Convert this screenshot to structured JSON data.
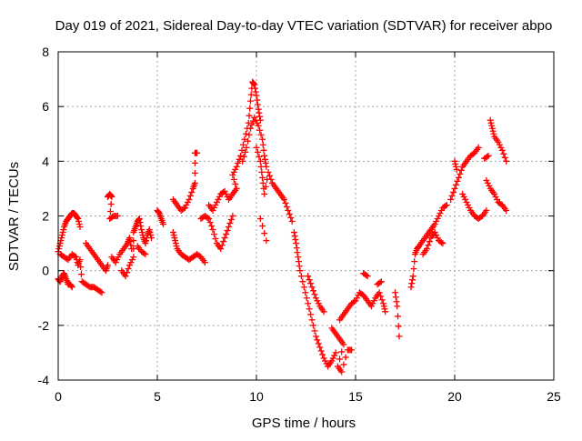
{
  "chart_data": {
    "type": "scatter",
    "title": "Day 019 of 2021, Sidereal Day-to-day VTEC variation (SDTVAR) for receiver abpo",
    "xlabel": "GPS time / hours",
    "ylabel": "SDTVAR / TECUs",
    "xlim": [
      0,
      25
    ],
    "ylim": [
      -4,
      8
    ],
    "xticks": [
      0,
      5,
      10,
      15,
      20,
      25
    ],
    "yticks": [
      -4,
      -2,
      0,
      2,
      4,
      6,
      8
    ],
    "grid": true,
    "marker": "+",
    "series_color": "#ff0000",
    "series": [
      {
        "name": "SDTVAR",
        "points": [
          [
            0.0,
            -0.3
          ],
          [
            0.1,
            -0.4
          ],
          [
            0.2,
            -0.2
          ],
          [
            0.3,
            -0.1
          ],
          [
            0.4,
            -0.3
          ],
          [
            0.5,
            -0.5
          ],
          [
            0.6,
            -0.5
          ],
          [
            0.7,
            -0.6
          ],
          [
            0.0,
            0.7
          ],
          [
            0.1,
            1.0
          ],
          [
            0.2,
            1.3
          ],
          [
            0.3,
            1.6
          ],
          [
            0.4,
            1.8
          ],
          [
            0.5,
            1.9
          ],
          [
            0.6,
            2.0
          ],
          [
            0.7,
            2.1
          ],
          [
            0.8,
            2.1
          ],
          [
            0.9,
            2.0
          ],
          [
            1.0,
            1.9
          ],
          [
            1.1,
            1.6
          ],
          [
            0.1,
            0.6
          ],
          [
            0.3,
            0.5
          ],
          [
            0.5,
            0.4
          ],
          [
            0.7,
            0.6
          ],
          [
            0.9,
            0.5
          ],
          [
            1.0,
            0.2
          ],
          [
            1.1,
            0.4
          ],
          [
            1.2,
            -0.4
          ],
          [
            1.4,
            -0.5
          ],
          [
            1.6,
            -0.6
          ],
          [
            1.8,
            -0.6
          ],
          [
            2.0,
            -0.7
          ],
          [
            2.2,
            -0.8
          ],
          [
            1.4,
            1.0
          ],
          [
            1.6,
            0.8
          ],
          [
            1.8,
            0.6
          ],
          [
            2.0,
            0.4
          ],
          [
            2.2,
            0.2
          ],
          [
            2.4,
            0.0
          ],
          [
            2.5,
            0.2
          ],
          [
            2.5,
            2.7
          ],
          [
            2.6,
            2.8
          ],
          [
            2.7,
            2.7
          ],
          [
            2.6,
            1.9
          ],
          [
            2.8,
            2.0
          ],
          [
            3.0,
            2.0
          ],
          [
            2.7,
            0.5
          ],
          [
            2.9,
            0.3
          ],
          [
            3.1,
            0.6
          ],
          [
            3.3,
            0.8
          ],
          [
            3.5,
            1.0
          ],
          [
            3.6,
            1.2
          ],
          [
            3.7,
            0.8
          ],
          [
            3.2,
            0.0
          ],
          [
            3.4,
            -0.2
          ],
          [
            3.6,
            0.2
          ],
          [
            3.8,
            0.5
          ],
          [
            3.8,
            1.4
          ],
          [
            3.9,
            1.6
          ],
          [
            4.0,
            1.8
          ],
          [
            4.1,
            1.9
          ],
          [
            4.2,
            1.5
          ],
          [
            4.3,
            1.2
          ],
          [
            4.4,
            1.0
          ],
          [
            4.5,
            1.3
          ],
          [
            4.6,
            1.5
          ],
          [
            4.7,
            1.2
          ],
          [
            4.0,
            0.9
          ],
          [
            4.2,
            0.7
          ],
          [
            4.4,
            0.6
          ],
          [
            5.0,
            2.2
          ],
          [
            5.1,
            2.1
          ],
          [
            5.2,
            1.9
          ],
          [
            5.3,
            1.7
          ],
          [
            5.8,
            1.4
          ],
          [
            5.9,
            1.1
          ],
          [
            6.0,
            0.8
          ],
          [
            6.2,
            0.6
          ],
          [
            6.4,
            0.5
          ],
          [
            6.6,
            0.4
          ],
          [
            6.8,
            0.5
          ],
          [
            7.0,
            0.6
          ],
          [
            7.2,
            0.5
          ],
          [
            7.4,
            0.3
          ],
          [
            5.8,
            2.6
          ],
          [
            6.0,
            2.4
          ],
          [
            6.2,
            2.2
          ],
          [
            6.4,
            2.3
          ],
          [
            6.6,
            2.6
          ],
          [
            6.8,
            3.0
          ],
          [
            6.9,
            3.2
          ],
          [
            6.9,
            4.3
          ],
          [
            7.0,
            4.3
          ],
          [
            7.2,
            1.9
          ],
          [
            7.4,
            2.0
          ],
          [
            7.6,
            1.9
          ],
          [
            7.8,
            1.5
          ],
          [
            8.0,
            1.0
          ],
          [
            8.2,
            0.8
          ],
          [
            8.4,
            1.2
          ],
          [
            8.6,
            1.6
          ],
          [
            8.8,
            2.0
          ],
          [
            7.6,
            2.4
          ],
          [
            7.8,
            2.2
          ],
          [
            8.0,
            2.5
          ],
          [
            8.2,
            2.8
          ],
          [
            8.4,
            2.9
          ],
          [
            8.6,
            2.6
          ],
          [
            8.8,
            2.8
          ],
          [
            9.0,
            3.0
          ],
          [
            8.8,
            3.5
          ],
          [
            9.0,
            3.8
          ],
          [
            9.2,
            4.2
          ],
          [
            9.4,
            4.8
          ],
          [
            9.6,
            5.4
          ],
          [
            9.7,
            6.2
          ],
          [
            9.8,
            6.9
          ],
          [
            9.9,
            6.8
          ],
          [
            10.0,
            6.4
          ],
          [
            10.1,
            5.9
          ],
          [
            10.2,
            5.5
          ],
          [
            9.3,
            4.0
          ],
          [
            9.5,
            4.5
          ],
          [
            9.7,
            5.2
          ],
          [
            9.9,
            5.6
          ],
          [
            10.1,
            5.3
          ],
          [
            10.3,
            4.8
          ],
          [
            10.4,
            4.2
          ],
          [
            10.5,
            3.8
          ],
          [
            10.0,
            4.5
          ],
          [
            10.2,
            4.0
          ],
          [
            10.3,
            3.4
          ],
          [
            10.4,
            2.8
          ],
          [
            10.6,
            3.6
          ],
          [
            10.8,
            3.2
          ],
          [
            11.0,
            3.0
          ],
          [
            11.2,
            2.8
          ],
          [
            11.4,
            2.6
          ],
          [
            11.6,
            2.2
          ],
          [
            11.8,
            1.8
          ],
          [
            10.2,
            1.9
          ],
          [
            10.5,
            1.1
          ],
          [
            11.9,
            1.4
          ],
          [
            12.0,
            1.0
          ],
          [
            12.1,
            0.5
          ],
          [
            12.2,
            0.0
          ],
          [
            12.4,
            -0.6
          ],
          [
            12.6,
            -1.2
          ],
          [
            12.8,
            -1.8
          ],
          [
            13.0,
            -2.4
          ],
          [
            13.2,
            -2.8
          ],
          [
            13.4,
            -3.2
          ],
          [
            13.6,
            -3.5
          ],
          [
            13.8,
            -3.3
          ],
          [
            14.0,
            -3.0
          ],
          [
            12.6,
            -0.2
          ],
          [
            12.8,
            -0.6
          ],
          [
            13.0,
            -1.0
          ],
          [
            13.2,
            -1.3
          ],
          [
            13.4,
            -1.5
          ],
          [
            13.8,
            -2.1
          ],
          [
            14.0,
            -2.3
          ],
          [
            14.2,
            -2.5
          ],
          [
            14.4,
            -2.7
          ],
          [
            14.1,
            -3.5
          ],
          [
            14.3,
            -3.7
          ],
          [
            14.6,
            -2.9
          ],
          [
            14.8,
            -2.9
          ],
          [
            14.2,
            -1.8
          ],
          [
            14.4,
            -1.6
          ],
          [
            14.6,
            -1.4
          ],
          [
            14.8,
            -1.2
          ],
          [
            15.0,
            -1.1
          ],
          [
            15.2,
            -0.8
          ],
          [
            15.4,
            -0.9
          ],
          [
            15.6,
            -1.1
          ],
          [
            15.8,
            -1.3
          ],
          [
            16.0,
            -1.0
          ],
          [
            16.2,
            -0.8
          ],
          [
            16.4,
            -1.2
          ],
          [
            16.5,
            -1.5
          ],
          [
            15.4,
            -0.1
          ],
          [
            15.6,
            -0.2
          ],
          [
            16.1,
            -0.5
          ],
          [
            16.3,
            -0.4
          ],
          [
            17.0,
            -0.8
          ],
          [
            17.1,
            -1.3
          ],
          [
            17.2,
            -2.4
          ],
          [
            17.8,
            -0.6
          ],
          [
            17.9,
            -0.2
          ],
          [
            18.0,
            0.6
          ],
          [
            18.1,
            0.8
          ],
          [
            18.2,
            0.9
          ],
          [
            18.4,
            1.1
          ],
          [
            18.6,
            1.3
          ],
          [
            18.8,
            1.5
          ],
          [
            19.0,
            1.7
          ],
          [
            19.2,
            2.0
          ],
          [
            19.4,
            2.3
          ],
          [
            19.6,
            2.4
          ],
          [
            18.4,
            0.6
          ],
          [
            18.6,
            0.8
          ],
          [
            18.8,
            1.2
          ],
          [
            19.0,
            1.4
          ],
          [
            19.2,
            1.1
          ],
          [
            19.4,
            1.0
          ],
          [
            19.8,
            2.6
          ],
          [
            20.0,
            3.0
          ],
          [
            20.2,
            3.4
          ],
          [
            20.4,
            3.8
          ],
          [
            20.6,
            4.0
          ],
          [
            20.8,
            4.2
          ],
          [
            21.0,
            4.3
          ],
          [
            21.2,
            4.5
          ],
          [
            20.4,
            2.8
          ],
          [
            20.6,
            2.5
          ],
          [
            20.8,
            2.2
          ],
          [
            21.0,
            2.0
          ],
          [
            21.2,
            1.9
          ],
          [
            21.4,
            2.0
          ],
          [
            21.6,
            2.2
          ],
          [
            20.0,
            4.0
          ],
          [
            20.1,
            3.7
          ],
          [
            21.8,
            5.5
          ],
          [
            21.9,
            5.2
          ],
          [
            22.0,
            4.9
          ],
          [
            22.2,
            4.7
          ],
          [
            22.4,
            4.4
          ],
          [
            22.6,
            4.0
          ],
          [
            21.6,
            3.3
          ],
          [
            21.8,
            3.0
          ],
          [
            22.0,
            2.8
          ],
          [
            22.2,
            2.5
          ],
          [
            22.4,
            2.4
          ],
          [
            22.6,
            2.2
          ],
          [
            21.5,
            4.1
          ],
          [
            21.7,
            4.2
          ]
        ]
      }
    ]
  }
}
